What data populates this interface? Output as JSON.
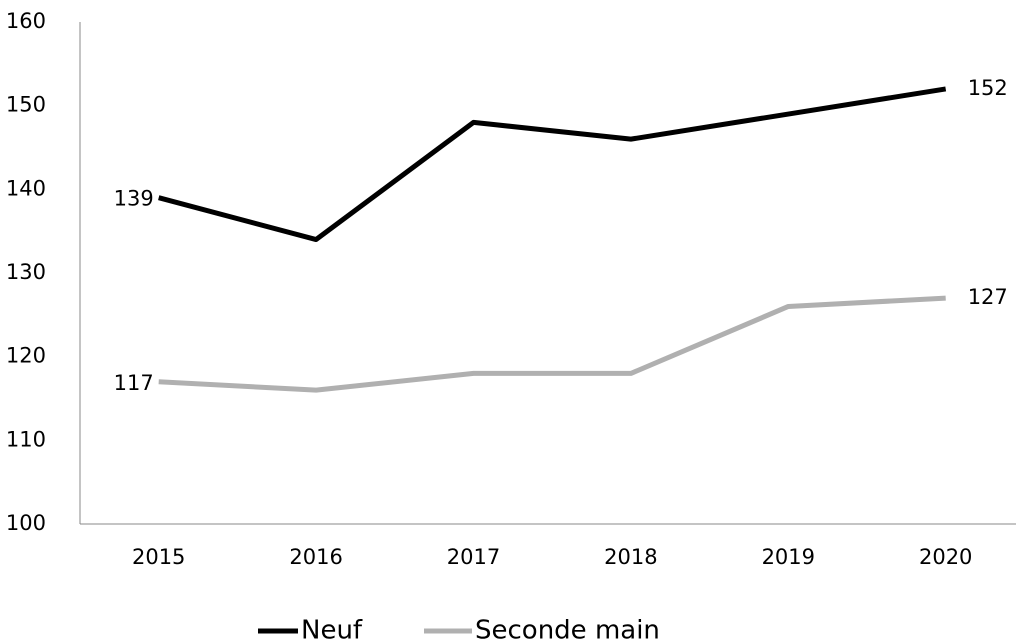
{
  "chart_data": {
    "type": "line",
    "categories": [
      "2015",
      "2016",
      "2017",
      "2018",
      "2019",
      "2020"
    ],
    "series": [
      {
        "name": "Neuf",
        "color": "#000000",
        "values": [
          139,
          134,
          148,
          146,
          149,
          152
        ]
      },
      {
        "name": "Seconde main",
        "color": "#b0b0b0",
        "values": [
          117,
          116,
          118,
          118,
          126,
          127
        ]
      }
    ],
    "ylim": [
      100,
      160
    ],
    "yticks": [
      100,
      110,
      120,
      130,
      140,
      150,
      160
    ],
    "grid": false,
    "data_labels": "first-last",
    "legend": "bottom"
  }
}
